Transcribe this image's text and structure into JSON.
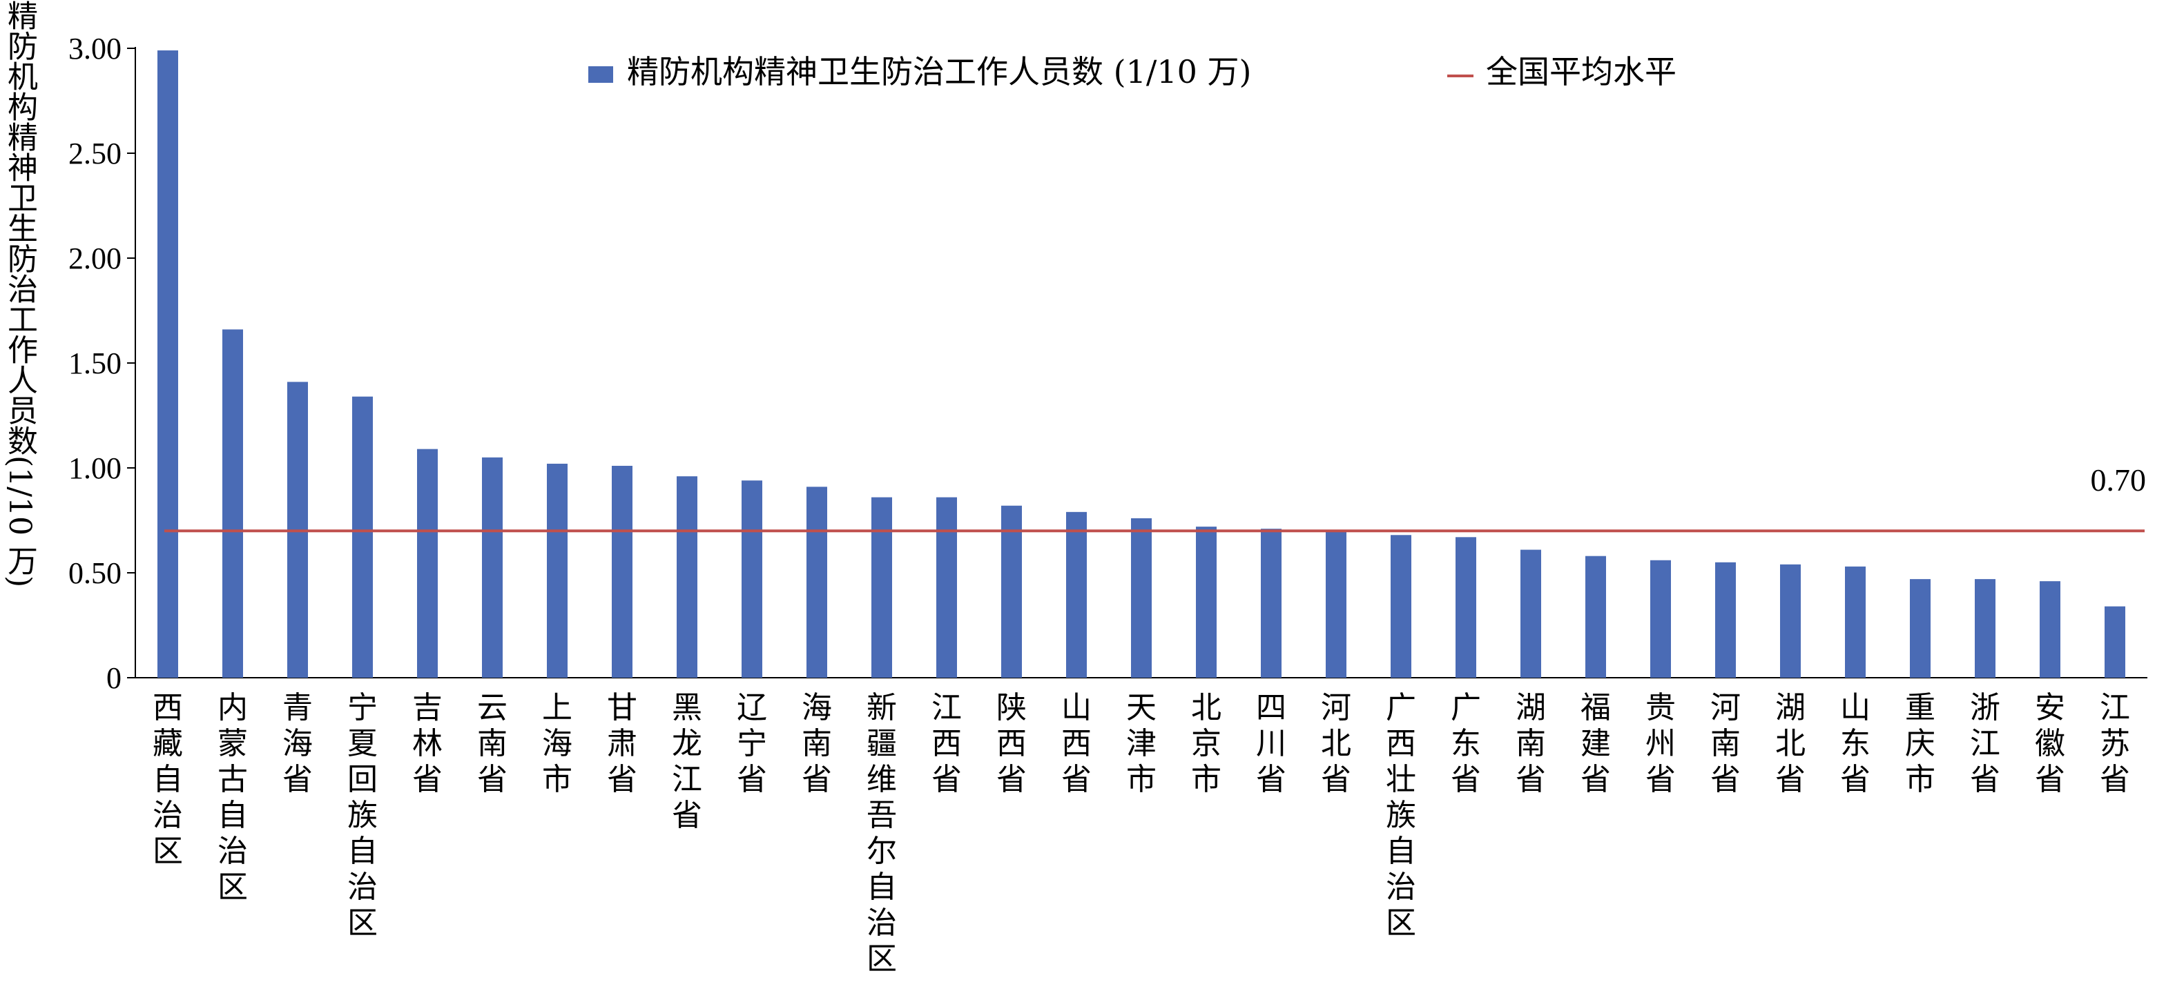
{
  "chart_data": {
    "type": "bar",
    "ylabel": "精防机构精神卫生防治工作人员数",
    "ylabel_unit": "(1/10 万)",
    "ylim": [
      0,
      3.0
    ],
    "yticks": [
      "0",
      "0.50",
      "1.00",
      "1.50",
      "2.00",
      "2.50",
      "3.00"
    ],
    "ytick_values": [
      0,
      0.5,
      1.0,
      1.5,
      2.0,
      2.5,
      3.0
    ],
    "categories": [
      "西藏自治区",
      "内蒙古自治区",
      "青海省",
      "宁夏回族自治区",
      "吉林省",
      "云南省",
      "上海市",
      "甘肃省",
      "黑龙江省",
      "辽宁省",
      "海南省",
      "新疆维吾尔自治区",
      "江西省",
      "陕西省",
      "山西省",
      "天津市",
      "北京市",
      "四川省",
      "河北省",
      "广西壮族自治区",
      "广东省",
      "湖南省",
      "福建省",
      "贵州省",
      "河南省",
      "湖北省",
      "山东省",
      "重庆市",
      "浙江省",
      "安徽省",
      "江苏省"
    ],
    "series": [
      {
        "name": "精防机构精神卫生防治工作人员数 (1/10 万)",
        "color": "#4a6bb5",
        "values": [
          2.99,
          1.66,
          1.41,
          1.34,
          1.09,
          1.05,
          1.02,
          1.01,
          0.96,
          0.94,
          0.91,
          0.86,
          0.86,
          0.82,
          0.79,
          0.76,
          0.72,
          0.71,
          0.7,
          0.68,
          0.67,
          0.61,
          0.58,
          0.56,
          0.55,
          0.54,
          0.53,
          0.47,
          0.47,
          0.46,
          0.34
        ]
      }
    ],
    "reference_line": {
      "name": "全国平均水平",
      "value": 0.7,
      "label": "0.70",
      "color": "#c0504d"
    },
    "legend_position": "top-center",
    "grid": false
  }
}
